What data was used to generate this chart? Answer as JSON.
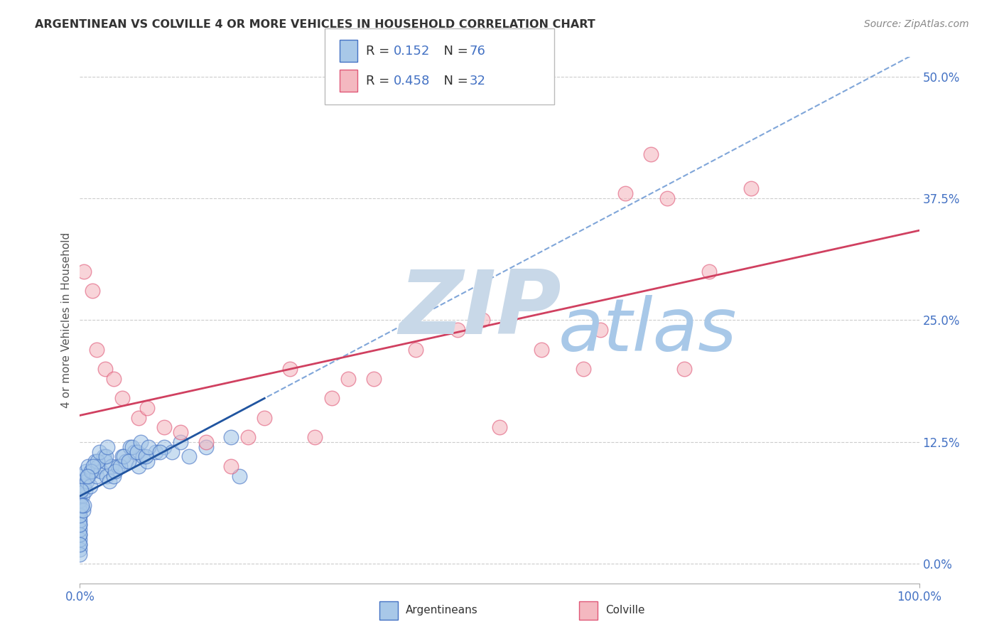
{
  "title": "ARGENTINEAN VS COLVILLE 4 OR MORE VEHICLES IN HOUSEHOLD CORRELATION CHART",
  "source_text": "Source: ZipAtlas.com",
  "ylabel": "4 or more Vehicles in Household",
  "ytick_labels": [
    "0.0%",
    "12.5%",
    "25.0%",
    "37.5%",
    "50.0%"
  ],
  "ytick_values": [
    0,
    12.5,
    25.0,
    37.5,
    50.0
  ],
  "xlim": [
    0,
    100
  ],
  "ylim": [
    -2,
    52
  ],
  "legend_r_blue": "0.152",
  "legend_n_blue": "76",
  "legend_r_pink": "0.458",
  "legend_n_pink": "32",
  "blue_fill": "#a8c8e8",
  "pink_fill": "#f4b8c0",
  "blue_edge": "#4472c4",
  "pink_edge": "#e05878",
  "blue_line_color": "#2155a0",
  "pink_line_color": "#d04060",
  "dashed_line_color": "#6090d0",
  "watermark_zip_color": "#c8d8e8",
  "watermark_atlas_color": "#a8c8e8",
  "background_color": "#ffffff",
  "grid_color": "#cccccc",
  "title_color": "#333333",
  "axis_label_color": "#555555",
  "tick_label_color": "#4472c4",
  "source_color": "#888888",
  "argentinean_x": [
    0.0,
    0.0,
    0.0,
    0.0,
    0.0,
    0.0,
    0.0,
    0.0,
    0.0,
    0.0,
    0.0,
    0.0,
    0.0,
    0.0,
    0.0,
    0.0,
    0.0,
    0.0,
    0.0,
    0.0,
    0.3,
    0.4,
    0.5,
    0.5,
    0.6,
    0.7,
    0.8,
    1.0,
    1.0,
    1.2,
    1.5,
    1.8,
    2.0,
    2.2,
    2.5,
    2.8,
    3.0,
    3.2,
    3.5,
    3.8,
    4.0,
    4.5,
    5.0,
    5.5,
    6.0,
    6.5,
    7.0,
    7.5,
    8.0,
    9.0,
    10.0,
    11.0,
    12.0,
    13.0,
    15.0,
    18.0,
    2.1,
    2.3,
    3.1,
    3.3,
    4.2,
    4.8,
    5.2,
    5.8,
    6.2,
    6.8,
    7.2,
    7.8,
    8.2,
    9.5,
    1.3,
    1.6,
    0.9,
    0.2,
    0.1,
    19.0
  ],
  "argentinean_y": [
    2.0,
    3.0,
    1.5,
    4.0,
    2.5,
    5.0,
    3.5,
    6.0,
    4.5,
    7.0,
    1.0,
    8.0,
    5.5,
    3.0,
    6.5,
    2.0,
    4.0,
    7.5,
    5.0,
    9.0,
    7.0,
    5.5,
    6.0,
    8.0,
    7.5,
    9.5,
    8.5,
    9.0,
    10.0,
    8.0,
    9.5,
    10.5,
    9.0,
    10.0,
    9.5,
    11.0,
    10.5,
    9.0,
    8.5,
    10.0,
    9.0,
    10.0,
    11.0,
    10.5,
    12.0,
    11.5,
    10.0,
    11.0,
    10.5,
    11.5,
    12.0,
    11.5,
    12.5,
    11.0,
    12.0,
    13.0,
    10.5,
    11.5,
    11.0,
    12.0,
    9.5,
    10.0,
    11.0,
    10.5,
    12.0,
    11.5,
    12.5,
    11.0,
    12.0,
    11.5,
    9.5,
    10.0,
    9.0,
    6.0,
    7.5,
    9.0
  ],
  "colville_x": [
    0.5,
    1.5,
    2.0,
    3.0,
    4.0,
    5.0,
    7.0,
    8.0,
    10.0,
    15.0,
    18.0,
    20.0,
    25.0,
    28.0,
    30.0,
    35.0,
    40.0,
    45.0,
    50.0,
    55.0,
    60.0,
    65.0,
    68.0,
    70.0,
    75.0,
    80.0,
    12.0,
    22.0,
    32.0,
    48.0,
    62.0,
    72.0
  ],
  "colville_y": [
    30.0,
    28.0,
    22.0,
    20.0,
    19.0,
    17.0,
    15.0,
    16.0,
    14.0,
    12.5,
    10.0,
    13.0,
    20.0,
    13.0,
    17.0,
    19.0,
    22.0,
    24.0,
    14.0,
    22.0,
    20.0,
    38.0,
    42.0,
    37.5,
    30.0,
    38.5,
    13.5,
    15.0,
    19.0,
    25.0,
    24.0,
    20.0
  ]
}
